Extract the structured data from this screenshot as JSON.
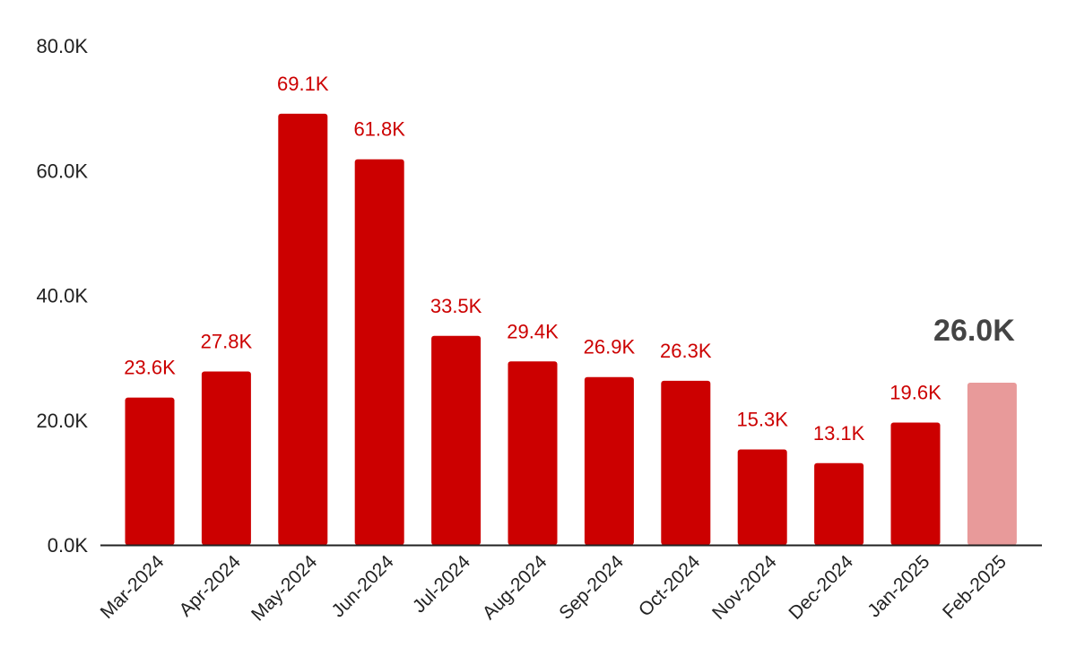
{
  "chart_data": {
    "type": "bar",
    "categories": [
      "Mar-2024",
      "Apr-2024",
      "May-2024",
      "Jun-2024",
      "Jul-2024",
      "Aug-2024",
      "Sep-2024",
      "Oct-2024",
      "Nov-2024",
      "Dec-2024",
      "Jan-2025",
      "Feb-2025"
    ],
    "values": [
      23.6,
      27.8,
      69.1,
      61.8,
      33.5,
      29.4,
      26.9,
      26.3,
      15.3,
      13.1,
      19.6,
      26.0
    ],
    "data_labels": [
      "23.6K",
      "27.8K",
      "69.1K",
      "61.8K",
      "33.5K",
      "29.4K",
      "26.9K",
      "26.3K",
      "15.3K",
      "13.1K",
      "19.6K",
      "26.0K"
    ],
    "y_ticks": [
      0,
      20,
      40,
      60,
      80
    ],
    "y_tick_labels": [
      "0.0K",
      "20.0K",
      "40.0K",
      "60.0K",
      "80.0K"
    ],
    "ylim": [
      0,
      80
    ],
    "title": "",
    "xlabel": "",
    "ylabel": "",
    "grid": false,
    "legend": "none",
    "highlight_index": 11,
    "colors": {
      "bar": "#cc0000",
      "bar_highlight": "#e89a9a",
      "label": "#cc0000",
      "label_highlight": "#444444",
      "axis": "#222222"
    }
  }
}
